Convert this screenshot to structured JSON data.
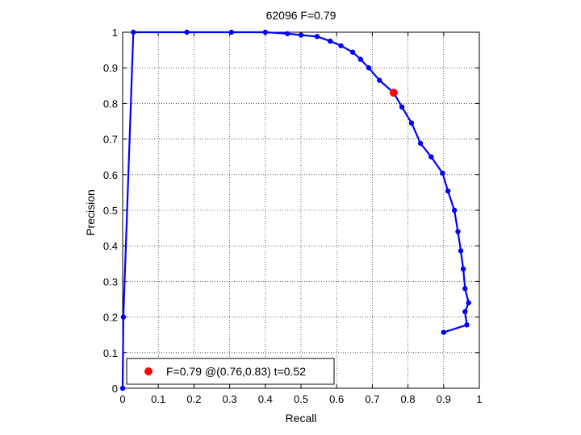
{
  "chart_data": {
    "type": "line",
    "title": "62096 F=0.79",
    "xlabel": "Recall",
    "ylabel": "Precision",
    "xlim": [
      0,
      1
    ],
    "ylim": [
      0,
      1
    ],
    "xticks": [
      "0",
      "0.1",
      "0.2",
      "0.3",
      "0.4",
      "0.5",
      "0.6",
      "0.7",
      "0.8",
      "0.9",
      "1"
    ],
    "yticks": [
      "0",
      "0.1",
      "0.2",
      "0.3",
      "0.4",
      "0.5",
      "0.6",
      "0.7",
      "0.8",
      "0.9",
      "1"
    ],
    "grid": true,
    "legend_position": "bottom-left",
    "series": [
      {
        "color": "#0000ff",
        "points": [
          [
            0.0,
            0.0
          ],
          [
            0.002,
            0.2
          ],
          [
            0.03,
            1.0
          ],
          [
            0.18,
            1.0
          ],
          [
            0.305,
            1.0
          ],
          [
            0.4,
            1.0
          ],
          [
            0.462,
            0.996
          ],
          [
            0.5,
            0.992
          ],
          [
            0.545,
            0.988
          ],
          [
            0.582,
            0.975
          ],
          [
            0.612,
            0.962
          ],
          [
            0.645,
            0.944
          ],
          [
            0.667,
            0.924
          ],
          [
            0.69,
            0.9
          ],
          [
            0.72,
            0.865
          ],
          [
            0.76,
            0.83
          ],
          [
            0.783,
            0.79
          ],
          [
            0.81,
            0.745
          ],
          [
            0.835,
            0.688
          ],
          [
            0.865,
            0.65
          ],
          [
            0.897,
            0.604
          ],
          [
            0.912,
            0.554
          ],
          [
            0.93,
            0.5
          ],
          [
            0.94,
            0.44
          ],
          [
            0.948,
            0.386
          ],
          [
            0.955,
            0.335
          ],
          [
            0.96,
            0.28
          ],
          [
            0.97,
            0.24
          ],
          [
            0.96,
            0.215
          ],
          [
            0.965,
            0.178
          ],
          [
            0.9,
            0.157
          ]
        ]
      }
    ],
    "highlight": {
      "color": "#ff0000",
      "x": 0.76,
      "y": 0.83,
      "label": "F=0.79 @(0.76,0.83) t=0.52"
    }
  }
}
